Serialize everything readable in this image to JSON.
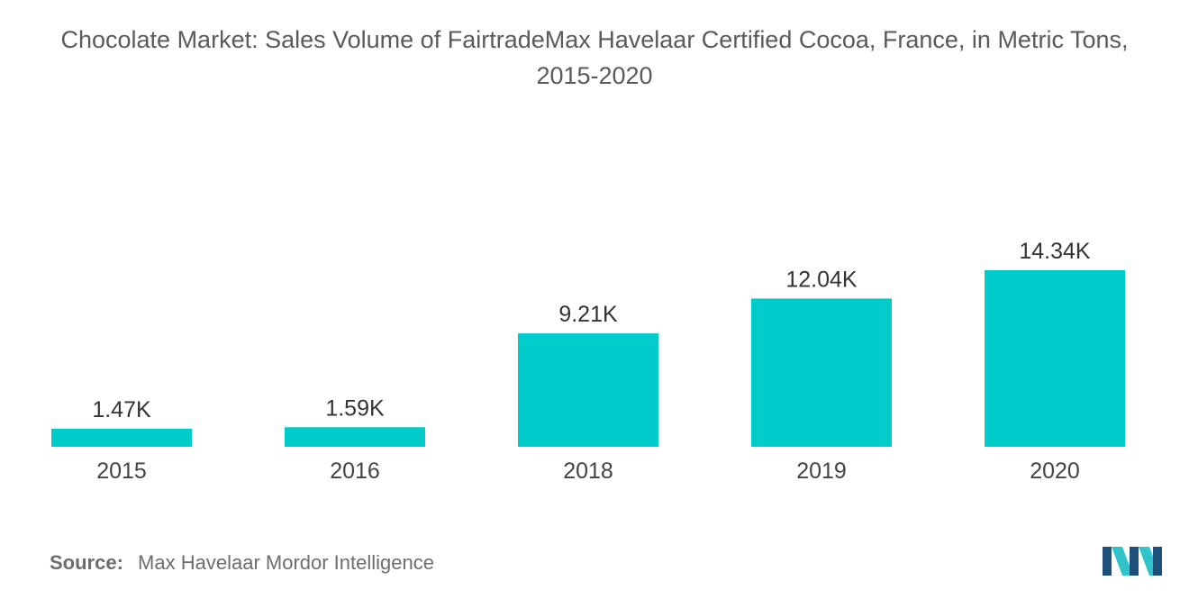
{
  "chart_data": {
    "type": "bar",
    "title": "Chocolate Market: Sales Volume of FairtradeMax Havelaar Certified Cocoa, France, in Metric Tons, 2015-2020",
    "categories": [
      "2015",
      "2016",
      "2018",
      "2019",
      "2020"
    ],
    "values": [
      1470,
      1590,
      9210,
      12040,
      14340
    ],
    "data_labels": [
      "1.47K",
      "1.59K",
      "9.21K",
      "12.04K",
      "14.34K"
    ],
    "xlabel": "",
    "ylabel": "",
    "ylim": [
      0,
      14340
    ],
    "grid": false,
    "legend": "none",
    "bar_color": "#00cccc"
  },
  "source": {
    "label": "Source:",
    "text": "Max Havelaar Mordor Intelligence"
  },
  "logo": {
    "icon": "mordor-intelligence-logo-icon",
    "colors": [
      "#1c4f7a",
      "#2ec4c9"
    ]
  }
}
